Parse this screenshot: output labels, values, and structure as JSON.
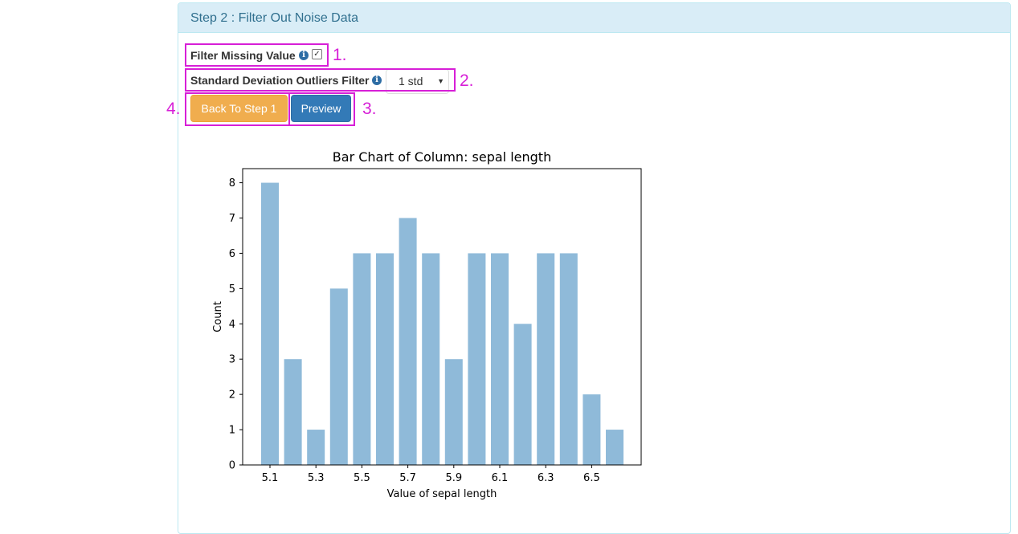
{
  "panel": {
    "title": "Step 2 : Filter Out Noise Data"
  },
  "filter_missing": {
    "label": "Filter Missing Value",
    "checked": true,
    "info_icon": "info-circle-icon"
  },
  "std_filter": {
    "label": "Standard Deviation Outliers Filter",
    "selected": "1 std",
    "info_icon": "info-circle-icon"
  },
  "buttons": {
    "back": "Back To Step 1",
    "preview": "Preview"
  },
  "annotations": [
    "1.",
    "2.",
    "3.",
    "4."
  ],
  "annotation_color": "#d71fd7",
  "chart_data": {
    "type": "bar",
    "title": "Bar Chart of Column: sepal length",
    "xlabel": "Value of sepal length",
    "ylabel": "Count",
    "categories": [
      "5.1",
      "5.2",
      "5.3",
      "5.4",
      "5.5",
      "5.6",
      "5.7",
      "5.8",
      "5.9",
      "6.0",
      "6.1",
      "6.2",
      "6.3",
      "6.4",
      "6.5",
      "6.6"
    ],
    "values": [
      8,
      3,
      1,
      5,
      6,
      6,
      7,
      6,
      3,
      6,
      6,
      4,
      6,
      6,
      2,
      1
    ],
    "xticks": [
      "5.1",
      "5.3",
      "5.5",
      "5.7",
      "5.9",
      "6.1",
      "6.3",
      "6.5"
    ],
    "yticks": [
      0,
      1,
      2,
      3,
      4,
      5,
      6,
      7,
      8
    ],
    "ylim": [
      0,
      8.4
    ],
    "bar_color": "#8fbad9",
    "grid": false
  }
}
